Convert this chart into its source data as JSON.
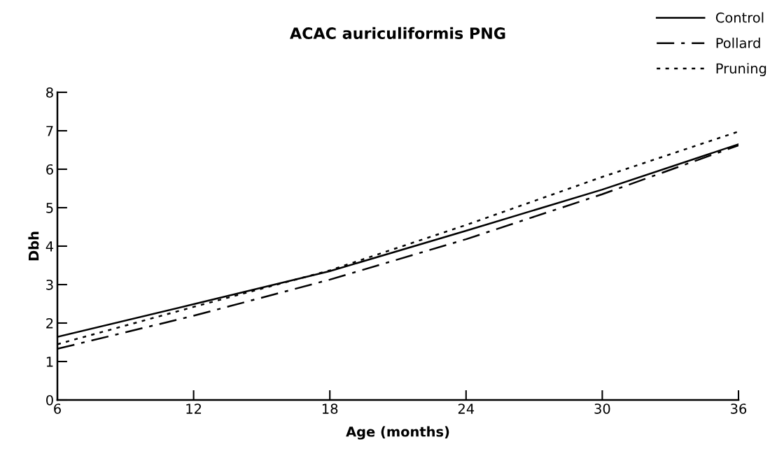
{
  "chart_data": {
    "type": "line",
    "title": "ACAC auriculiformis PNG",
    "xlabel": "Age (months)",
    "ylabel": "Dbh",
    "x": [
      6,
      12,
      18,
      24,
      30,
      36
    ],
    "series": [
      {
        "name": "Control",
        "color": "#000000",
        "line_style": "solid",
        "values": [
          1.64,
          2.49,
          3.35,
          4.4,
          5.47,
          6.65
        ]
      },
      {
        "name": "Pollard",
        "color": "#000000",
        "line_style": "dashdot",
        "values": [
          1.33,
          2.19,
          3.13,
          4.18,
          5.35,
          6.62
        ]
      },
      {
        "name": "Pruning",
        "color": "#000000",
        "line_style": "dotted",
        "values": [
          1.45,
          2.42,
          3.37,
          4.55,
          5.8,
          6.98
        ]
      }
    ],
    "xlim": [
      6,
      36
    ],
    "xticks": [
      6,
      12,
      18,
      24,
      30,
      36
    ],
    "ylim": [
      0,
      8
    ],
    "yticks": [
      0,
      1,
      2,
      3,
      4,
      5,
      6,
      7,
      8
    ],
    "grid": false,
    "legend": "top right",
    "marker": "none"
  }
}
